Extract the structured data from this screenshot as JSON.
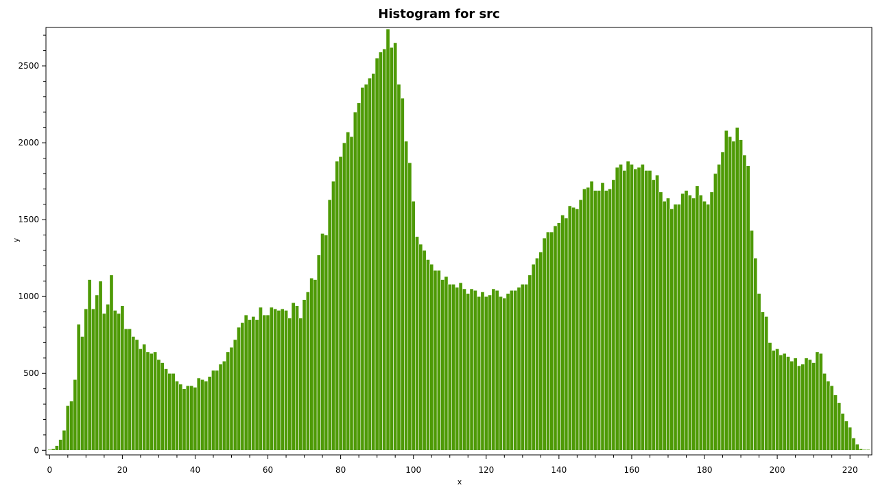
{
  "chart_data": {
    "type": "bar",
    "title": "Histogram for src",
    "xlabel": "x",
    "ylabel": "y",
    "xlim": [
      -1,
      226
    ],
    "ylim": [
      -30,
      2750
    ],
    "x_ticks": [
      0,
      20,
      40,
      60,
      80,
      100,
      120,
      140,
      160,
      180,
      200,
      220
    ],
    "y_ticks": [
      0,
      500,
      1000,
      1500,
      2000,
      2500
    ],
    "grid": false,
    "bar_color": "#4e9a06",
    "bar_edge_color": "#ffffff",
    "x": [
      0,
      1,
      2,
      3,
      4,
      5,
      6,
      7,
      8,
      9,
      10,
      11,
      12,
      13,
      14,
      15,
      16,
      17,
      18,
      19,
      20,
      21,
      22,
      23,
      24,
      25,
      26,
      27,
      28,
      29,
      30,
      31,
      32,
      33,
      34,
      35,
      36,
      37,
      38,
      39,
      40,
      41,
      42,
      43,
      44,
      45,
      46,
      47,
      48,
      49,
      50,
      51,
      52,
      53,
      54,
      55,
      56,
      57,
      58,
      59,
      60,
      61,
      62,
      63,
      64,
      65,
      66,
      67,
      68,
      69,
      70,
      71,
      72,
      73,
      74,
      75,
      76,
      77,
      78,
      79,
      80,
      81,
      82,
      83,
      84,
      85,
      86,
      87,
      88,
      89,
      90,
      91,
      92,
      93,
      94,
      95,
      96,
      97,
      98,
      99,
      100,
      101,
      102,
      103,
      104,
      105,
      106,
      107,
      108,
      109,
      110,
      111,
      112,
      113,
      114,
      115,
      116,
      117,
      118,
      119,
      120,
      121,
      122,
      123,
      124,
      125,
      126,
      127,
      128,
      129,
      130,
      131,
      132,
      133,
      134,
      135,
      136,
      137,
      138,
      139,
      140,
      141,
      142,
      143,
      144,
      145,
      146,
      147,
      148,
      149,
      150,
      151,
      152,
      153,
      154,
      155,
      156,
      157,
      158,
      159,
      160,
      161,
      162,
      163,
      164,
      165,
      166,
      167,
      168,
      169,
      170,
      171,
      172,
      173,
      174,
      175,
      176,
      177,
      178,
      179,
      180,
      181,
      182,
      183,
      184,
      185,
      186,
      187,
      188,
      189,
      190,
      191,
      192,
      193,
      194,
      195,
      196,
      197,
      198,
      199,
      200,
      201,
      202,
      203,
      204,
      205,
      206,
      207,
      208,
      209,
      210,
      211,
      212,
      213,
      214,
      215,
      216,
      217,
      218,
      219,
      220,
      221,
      222,
      223,
      224,
      225
    ],
    "values": [
      5,
      10,
      30,
      70,
      130,
      290,
      320,
      460,
      820,
      740,
      920,
      1110,
      920,
      1010,
      1100,
      890,
      950,
      1140,
      910,
      890,
      940,
      790,
      790,
      740,
      720,
      660,
      690,
      640,
      630,
      640,
      590,
      570,
      530,
      500,
      500,
      450,
      430,
      400,
      420,
      420,
      410,
      470,
      460,
      450,
      480,
      520,
      520,
      560,
      580,
      640,
      670,
      720,
      800,
      830,
      880,
      850,
      870,
      850,
      930,
      880,
      880,
      930,
      920,
      910,
      920,
      910,
      860,
      960,
      940,
      860,
      980,
      1030,
      1120,
      1110,
      1270,
      1410,
      1400,
      1630,
      1750,
      1880,
      1910,
      2000,
      2070,
      2040,
      2200,
      2260,
      2360,
      2380,
      2420,
      2450,
      2550,
      2590,
      2610,
      2740,
      2620,
      2650,
      2380,
      2290,
      2010,
      1870,
      1620,
      1390,
      1340,
      1300,
      1240,
      1210,
      1170,
      1170,
      1110,
      1130,
      1080,
      1080,
      1060,
      1090,
      1050,
      1020,
      1050,
      1040,
      1000,
      1030,
      1000,
      1010,
      1050,
      1040,
      1000,
      990,
      1020,
      1040,
      1040,
      1060,
      1080,
      1080,
      1140,
      1210,
      1250,
      1290,
      1380,
      1420,
      1420,
      1460,
      1480,
      1530,
      1510,
      1590,
      1580,
      1570,
      1630,
      1700,
      1710,
      1750,
      1690,
      1690,
      1740,
      1690,
      1700,
      1760,
      1840,
      1860,
      1820,
      1880,
      1860,
      1830,
      1840,
      1860,
      1820,
      1820,
      1760,
      1790,
      1680,
      1620,
      1640,
      1570,
      1600,
      1600,
      1670,
      1690,
      1660,
      1640,
      1720,
      1660,
      1620,
      1600,
      1680,
      1800,
      1860,
      1940,
      2080,
      2040,
      2010,
      2100,
      2020,
      1920,
      1850,
      1430,
      1250,
      1020,
      900,
      870,
      700,
      650,
      660,
      620,
      630,
      610,
      580,
      600,
      550,
      560,
      600,
      590,
      570,
      640,
      630,
      500,
      450,
      420,
      360,
      310,
      240,
      190,
      150,
      80,
      40,
      10,
      5,
      5
    ]
  }
}
